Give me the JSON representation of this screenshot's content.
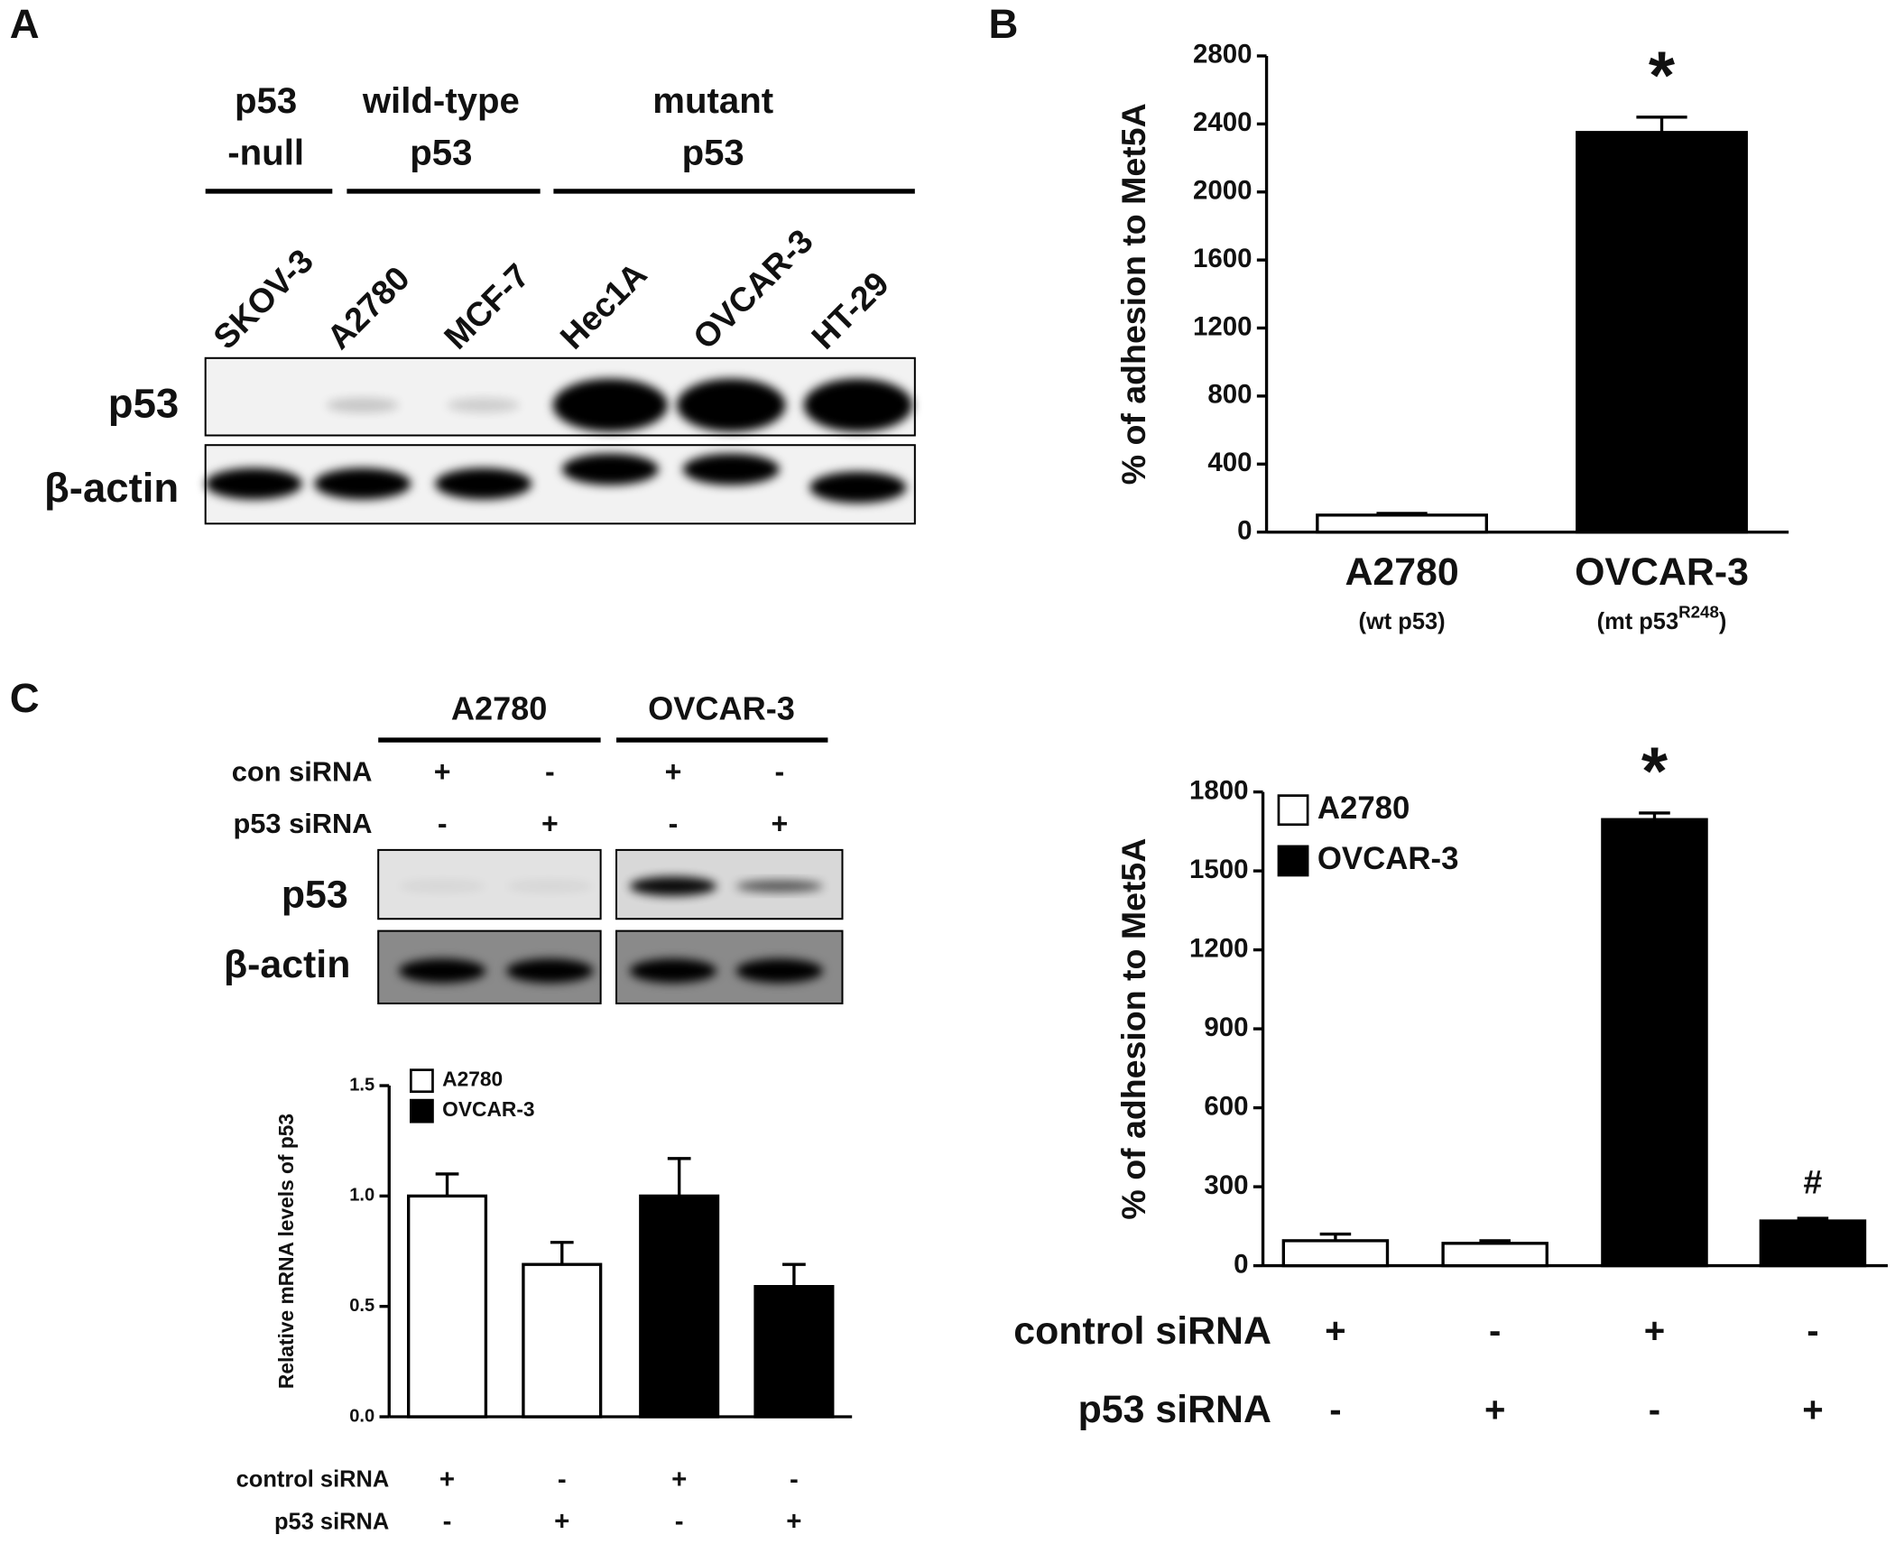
{
  "panel_labels": [
    "A",
    "B",
    "C"
  ],
  "blot_a": {
    "groups": [
      [
        "p53",
        "-null"
      ],
      [
        "wild-type",
        "p53"
      ],
      [
        "mutant",
        "p53"
      ]
    ],
    "lanes": [
      "SKOV-3",
      "A2780",
      "MCF-7",
      "Hec1A",
      "OVCAR-3",
      "HT-29"
    ],
    "rows": [
      "p53",
      "β-actin"
    ]
  },
  "blot_c": {
    "groups": [
      "A2780",
      "OVCAR-3"
    ],
    "conditions": [
      {
        "label": "con siRNA",
        "signs": [
          "+",
          "-",
          "+",
          "-"
        ]
      },
      {
        "label": "p53 siRNA",
        "signs": [
          "-",
          "+",
          "-",
          "+"
        ]
      }
    ],
    "rows": [
      "p53",
      "β-actin"
    ]
  },
  "chart_data": [
    {
      "type": "bar",
      "y_label": "% of adhesion to Met5A",
      "categories": [
        "A2780",
        "OVCAR-3"
      ],
      "category_notes": [
        {
          "text": "(wt p53)"
        },
        {
          "text": "(mt p53",
          "superscript": "R248",
          "tail": ")"
        }
      ],
      "values": [
        100,
        2350
      ],
      "errors": [
        10,
        90
      ],
      "colors": [
        "#ffffff",
        "#000000"
      ],
      "annotations": [
        null,
        "*"
      ],
      "ylim": [
        0,
        2800
      ],
      "yticks": [
        0,
        400,
        800,
        1200,
        1600,
        2000,
        2400,
        2800
      ]
    },
    {
      "type": "bar",
      "y_label": "Relative mRNA levels of p53",
      "series": [
        {
          "name": "A2780",
          "color": "#ffffff",
          "values": [
            1.0,
            0.69,
            null,
            null
          ],
          "errors": [
            0.1,
            0.1,
            null,
            null
          ]
        },
        {
          "name": "OVCAR-3",
          "color": "#000000",
          "values": [
            null,
            null,
            1.0,
            0.59
          ],
          "errors": [
            null,
            null,
            0.17,
            0.1
          ]
        }
      ],
      "conditions": [
        {
          "label": "control siRNA",
          "signs": [
            "+",
            "-",
            "+",
            "-"
          ]
        },
        {
          "label": "p53 siRNA",
          "signs": [
            "-",
            "+",
            "-",
            "+"
          ]
        }
      ],
      "ylim": [
        0,
        1.5
      ],
      "yticks": [
        {
          "value": 0,
          "label": "0.0"
        },
        {
          "value": 0.5,
          "label": "0.5"
        },
        {
          "value": 1,
          "label": "1.0"
        },
        {
          "value": 1.5,
          "label": "1.5"
        }
      ],
      "legend": "upper left"
    },
    {
      "type": "bar",
      "y_label": "% of adhesion to Met5A",
      "series": [
        {
          "name": "A2780",
          "color": "#ffffff",
          "values": [
            95,
            85,
            null,
            null
          ],
          "errors": [
            25,
            10,
            null,
            null
          ],
          "annotations": [
            null,
            null,
            null,
            null
          ]
        },
        {
          "name": "OVCAR-3",
          "color": "#000000",
          "values": [
            null,
            null,
            1695,
            170
          ],
          "errors": [
            null,
            null,
            25,
            10
          ],
          "annotations": [
            null,
            null,
            "*",
            "#"
          ]
        }
      ],
      "conditions": [
        {
          "label": "control siRNA",
          "signs": [
            "+",
            "-",
            "+",
            "-"
          ]
        },
        {
          "label": "p53 siRNA",
          "signs": [
            "-",
            "+",
            "-",
            "+"
          ]
        }
      ],
      "ylim": [
        0,
        1800
      ],
      "yticks": [
        0,
        300,
        600,
        900,
        1200,
        1500,
        1800
      ],
      "legend": "upper left"
    }
  ]
}
